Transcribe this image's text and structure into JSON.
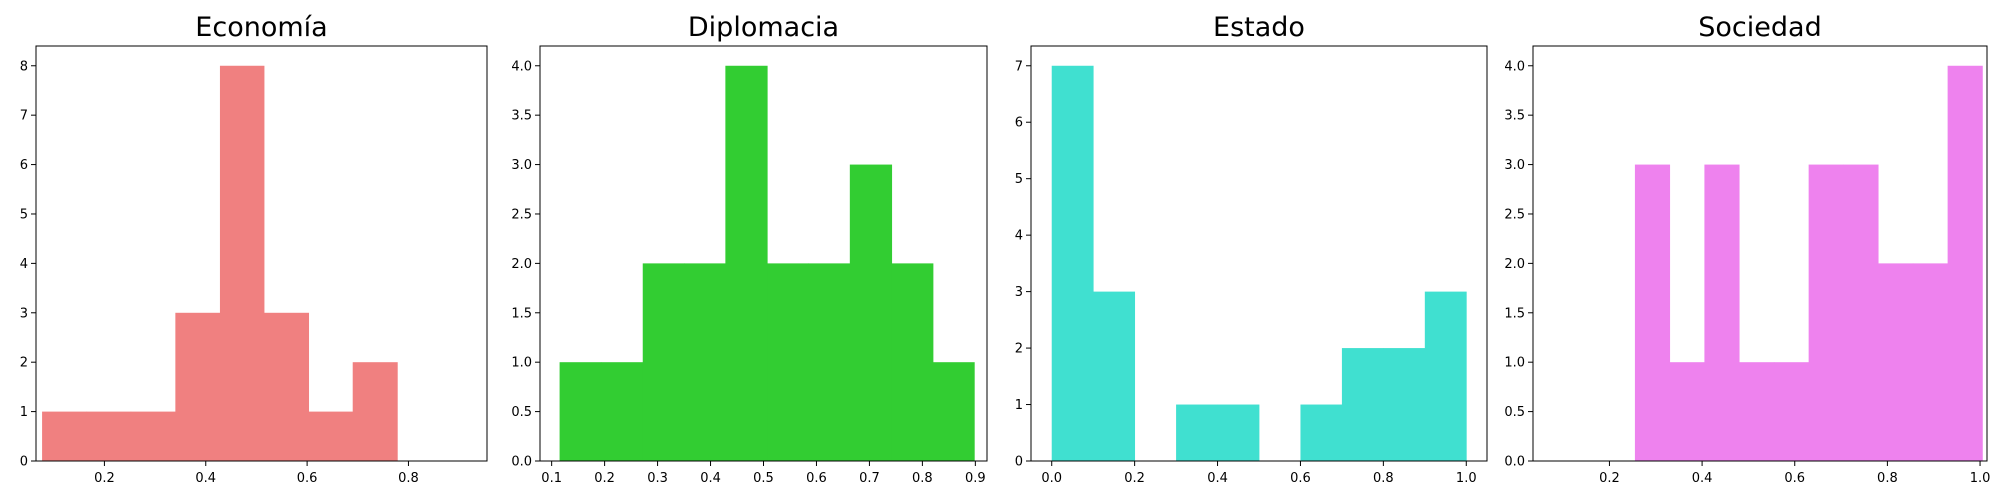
{
  "chart_data": [
    {
      "type": "bar",
      "title": "Economía",
      "color": "#f08080",
      "xlim": [
        0.065,
        0.955
      ],
      "ylim": [
        0,
        8.4
      ],
      "xticks": [
        0.2,
        0.4,
        0.6,
        0.8
      ],
      "xtick_labels": [
        "0.2",
        "0.4",
        "0.6",
        "0.8"
      ],
      "yticks": [
        0,
        1,
        2,
        3,
        4,
        5,
        6,
        7,
        8
      ],
      "ytick_labels": [
        "0",
        "1",
        "2",
        "3",
        "4",
        "5",
        "6",
        "7",
        "8"
      ],
      "bins": [
        {
          "x0": 0.077,
          "x1": 0.165,
          "count": 1
        },
        {
          "x0": 0.165,
          "x1": 0.252,
          "count": 1
        },
        {
          "x0": 0.252,
          "x1": 0.34,
          "count": 1
        },
        {
          "x0": 0.34,
          "x1": 0.428,
          "count": 3
        },
        {
          "x0": 0.428,
          "x1": 0.515,
          "count": 8
        },
        {
          "x0": 0.515,
          "x1": 0.603,
          "count": 3
        },
        {
          "x0": 0.603,
          "x1": 0.69,
          "count": 1
        },
        {
          "x0": 0.69,
          "x1": 0.778,
          "count": 2
        }
      ]
    },
    {
      "type": "bar",
      "title": "Diplomacia",
      "color": "#32cd32",
      "xlim": [
        0.078,
        0.922
      ],
      "ylim": [
        0,
        4.2
      ],
      "xticks": [
        0.1,
        0.2,
        0.3,
        0.4,
        0.5,
        0.6,
        0.7,
        0.8,
        0.9
      ],
      "xtick_labels": [
        "0.1",
        "0.2",
        "0.3",
        "0.4",
        "0.5",
        "0.6",
        "0.7",
        "0.8",
        "0.9"
      ],
      "yticks": [
        0,
        0.5,
        1,
        1.5,
        2,
        2.5,
        3,
        3.5,
        4
      ],
      "ytick_labels": [
        "0.0",
        "0.5",
        "1.0",
        "1.5",
        "2.0",
        "2.5",
        "3.0",
        "3.5",
        "4.0"
      ],
      "bins": [
        {
          "x0": 0.115,
          "x1": 0.193,
          "count": 1
        },
        {
          "x0": 0.193,
          "x1": 0.272,
          "count": 1
        },
        {
          "x0": 0.272,
          "x1": 0.35,
          "count": 2
        },
        {
          "x0": 0.35,
          "x1": 0.428,
          "count": 2
        },
        {
          "x0": 0.428,
          "x1": 0.507,
          "count": 4
        },
        {
          "x0": 0.507,
          "x1": 0.585,
          "count": 2
        },
        {
          "x0": 0.585,
          "x1": 0.663,
          "count": 2
        },
        {
          "x0": 0.663,
          "x1": 0.742,
          "count": 3
        },
        {
          "x0": 0.742,
          "x1": 0.82,
          "count": 2
        },
        {
          "x0": 0.82,
          "x1": 0.898,
          "count": 1
        }
      ]
    },
    {
      "type": "bar",
      "title": "Estado",
      "color": "#40e0d0",
      "xlim": [
        -0.05,
        1.05
      ],
      "ylim": [
        0,
        7.35
      ],
      "xticks": [
        0,
        0.2,
        0.4,
        0.6,
        0.8,
        1.0
      ],
      "xtick_labels": [
        "0.0",
        "0.2",
        "0.4",
        "0.6",
        "0.8",
        "1.0"
      ],
      "yticks": [
        0,
        1,
        2,
        3,
        4,
        5,
        6,
        7
      ],
      "ytick_labels": [
        "0",
        "1",
        "2",
        "3",
        "4",
        "5",
        "6",
        "7"
      ],
      "bins": [
        {
          "x0": 0.0,
          "x1": 0.1,
          "count": 7
        },
        {
          "x0": 0.1,
          "x1": 0.2,
          "count": 3
        },
        {
          "x0": 0.2,
          "x1": 0.3,
          "count": 0
        },
        {
          "x0": 0.3,
          "x1": 0.4,
          "count": 1
        },
        {
          "x0": 0.4,
          "x1": 0.5,
          "count": 1
        },
        {
          "x0": 0.5,
          "x1": 0.6,
          "count": 0
        },
        {
          "x0": 0.6,
          "x1": 0.7,
          "count": 1
        },
        {
          "x0": 0.7,
          "x1": 0.8,
          "count": 2
        },
        {
          "x0": 0.8,
          "x1": 0.9,
          "count": 2
        },
        {
          "x0": 0.9,
          "x1": 1.0,
          "count": 3
        }
      ]
    },
    {
      "type": "bar",
      "title": "Sociedad",
      "color": "#ee82ee",
      "xlim": [
        0.035,
        1.015
      ],
      "ylim": [
        0,
        4.2
      ],
      "xticks": [
        0.2,
        0.4,
        0.6,
        0.8,
        1.0
      ],
      "xtick_labels": [
        "0.2",
        "0.4",
        "0.6",
        "0.8",
        "1.0"
      ],
      "yticks": [
        0,
        0.5,
        1,
        1.5,
        2,
        2.5,
        3,
        3.5,
        4
      ],
      "ytick_labels": [
        "0.0",
        "0.5",
        "1.0",
        "1.5",
        "2.0",
        "2.5",
        "3.0",
        "3.5",
        "4.0"
      ],
      "bins": [
        {
          "x0": 0.255,
          "x1": 0.33,
          "count": 3
        },
        {
          "x0": 0.33,
          "x1": 0.405,
          "count": 1
        },
        {
          "x0": 0.405,
          "x1": 0.48,
          "count": 3
        },
        {
          "x0": 0.48,
          "x1": 0.555,
          "count": 1
        },
        {
          "x0": 0.555,
          "x1": 0.63,
          "count": 1
        },
        {
          "x0": 0.63,
          "x1": 0.705,
          "count": 3
        },
        {
          "x0": 0.705,
          "x1": 0.78,
          "count": 3
        },
        {
          "x0": 0.78,
          "x1": 0.855,
          "count": 2
        },
        {
          "x0": 0.855,
          "x1": 0.93,
          "count": 2
        },
        {
          "x0": 0.93,
          "x1": 1.005,
          "count": 4
        }
      ]
    }
  ]
}
